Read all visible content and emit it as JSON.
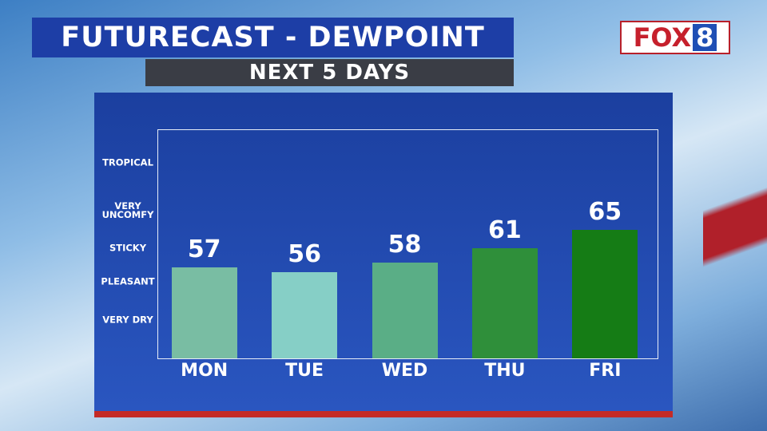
{
  "chart_data": {
    "type": "bar",
    "title": "FUTURECAST - DEWPOINT",
    "subtitle": "NEXT 5 DAYS",
    "logo_text": "FOX",
    "logo_number": "8",
    "categories": [
      "MON",
      "TUE",
      "WED",
      "THU",
      "FRI"
    ],
    "values": [
      57,
      56,
      58,
      61,
      65
    ],
    "colors": [
      "#79bda3",
      "#86cfc6",
      "#5aae86",
      "#2f8f3a",
      "#157c15"
    ],
    "ylim": [
      38,
      86
    ],
    "yticks": [
      {
        "value": 46,
        "label": "VERY DRY"
      },
      {
        "value": 54,
        "label": "PLEASANT"
      },
      {
        "value": 61,
        "label": "STICKY"
      },
      {
        "value": 69,
        "label": "VERY UNCOMFY"
      },
      {
        "value": 79,
        "label": "TROPICAL"
      }
    ],
    "grid": false
  }
}
